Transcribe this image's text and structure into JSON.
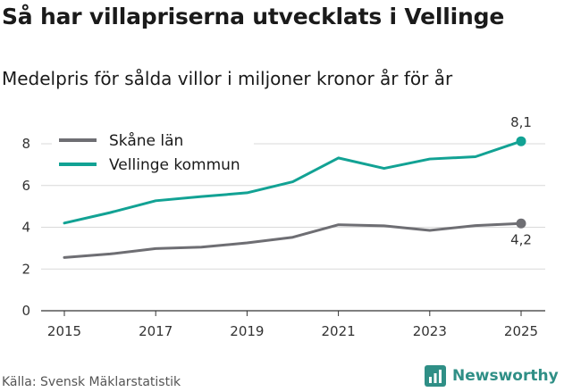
{
  "title": "Så har villapriserna utvecklats i Vellinge",
  "subtitle": "Medelpris för sålda villor i miljoner kronor år för år",
  "source": "Källa: Svensk Mäklarstatistik",
  "brand": {
    "name": "Newsworthy",
    "icon": "newsworthy-logo-icon",
    "color": "#2f8f86"
  },
  "chart_data": {
    "type": "line",
    "x": [
      2015,
      2016,
      2017,
      2018,
      2019,
      2020,
      2021,
      2022,
      2023,
      2024,
      2025
    ],
    "x_ticks": [
      "2015",
      "2017",
      "2019",
      "2021",
      "2023",
      "2025"
    ],
    "y_ticks": [
      "0",
      "2",
      "4",
      "6",
      "8"
    ],
    "ylim": [
      0,
      8.6
    ],
    "grid": "horizontal",
    "legend_position": "top-left",
    "series": [
      {
        "name": "Skåne län",
        "color": "#6e6e73",
        "values": [
          2.55,
          2.72,
          2.98,
          3.05,
          3.25,
          3.52,
          4.12,
          4.07,
          3.85,
          4.08,
          4.18
        ],
        "end_label": "4,2"
      },
      {
        "name": "Vellinge kommun",
        "color": "#12a294",
        "values": [
          4.2,
          4.7,
          5.27,
          5.47,
          5.65,
          6.18,
          7.32,
          6.82,
          7.27,
          7.38,
          8.12
        ],
        "end_label": "8,1"
      }
    ]
  }
}
